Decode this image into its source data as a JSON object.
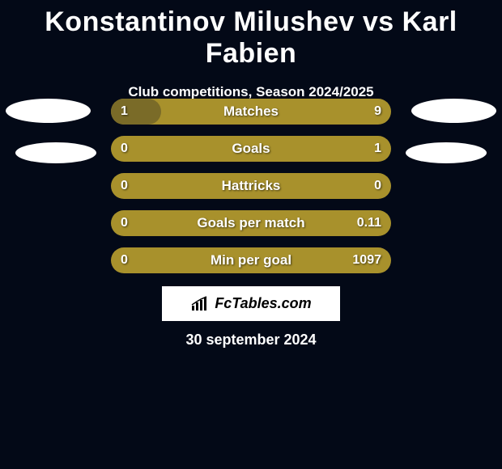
{
  "title": "Konstantinov Milushev vs Karl Fabien",
  "subtitle": "Club competitions, Season 2024/2025",
  "colors": {
    "background": "#030917",
    "bar_bg": "#a8912c",
    "bar_fill": "#7a6b28",
    "text": "#ffffff",
    "oval": "#ffffff",
    "brand_bg": "#ffffff",
    "brand_text": "#000000"
  },
  "bars": [
    {
      "label": "Matches",
      "left": "1",
      "right": "9",
      "fill_side": "left",
      "fill_pct": 18
    },
    {
      "label": "Goals",
      "left": "0",
      "right": "1",
      "fill_side": "none",
      "fill_pct": 0
    },
    {
      "label": "Hattricks",
      "left": "0",
      "right": "0",
      "fill_side": "none",
      "fill_pct": 0
    },
    {
      "label": "Goals per match",
      "left": "0",
      "right": "0.11",
      "fill_side": "none",
      "fill_pct": 0
    },
    {
      "label": "Min per goal",
      "left": "0",
      "right": "1097",
      "fill_side": "none",
      "fill_pct": 0
    }
  ],
  "brand": "FcTables.com",
  "date": "30 september 2024"
}
